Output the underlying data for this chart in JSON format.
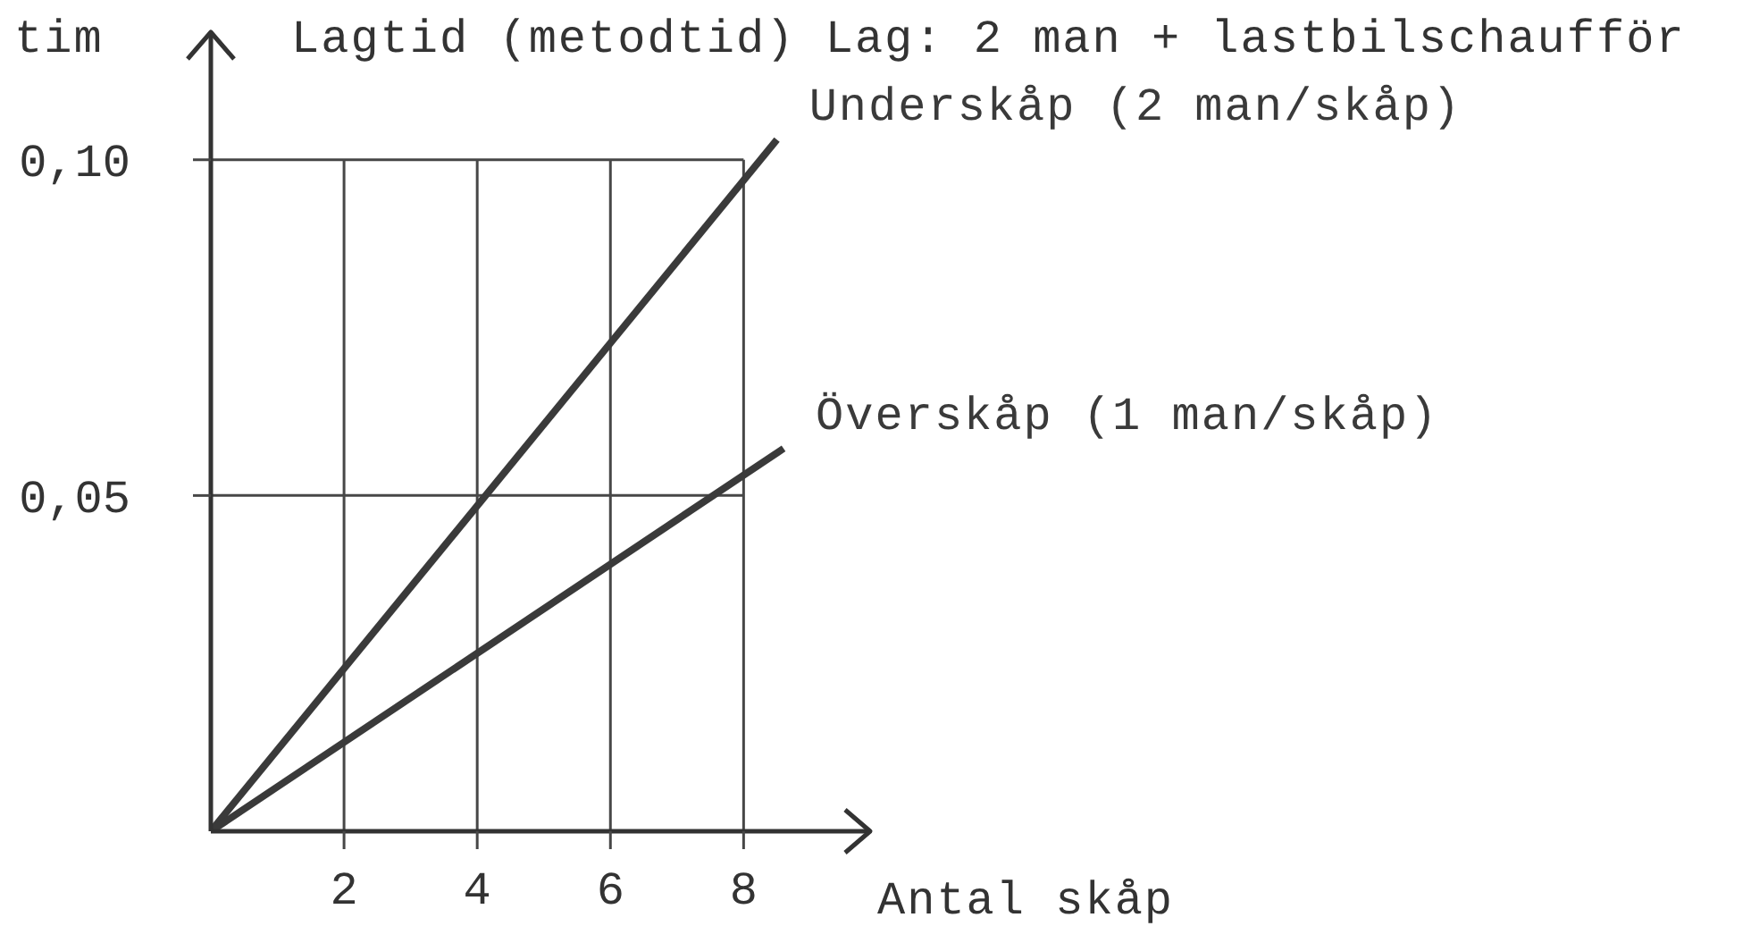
{
  "chart_data": {
    "type": "line",
    "title": "Lagtid (metodtid) Lag: 2 man + lastbilschaufför",
    "xlabel": "Antal skåp",
    "ylabel": "tim",
    "xlim": [
      0,
      9.9
    ],
    "ylim": [
      0,
      0.119
    ],
    "xticks": [
      2,
      4,
      6,
      8
    ],
    "yticks": [
      {
        "value": 0.05,
        "label": "0,05"
      },
      {
        "value": 0.1,
        "label": "0,10"
      }
    ],
    "grid": true,
    "marker": "none",
    "line_style": "solid",
    "series": [
      {
        "name": "Underskåp (2 man/skåp)",
        "color": "#3a3a3a",
        "x": [
          0,
          8.5
        ],
        "values": [
          0,
          0.103
        ]
      },
      {
        "name": "Överskåp (1 man/skåp)",
        "color": "#3a3a3a",
        "x": [
          0,
          8.6
        ],
        "values": [
          0,
          0.057
        ]
      }
    ]
  }
}
